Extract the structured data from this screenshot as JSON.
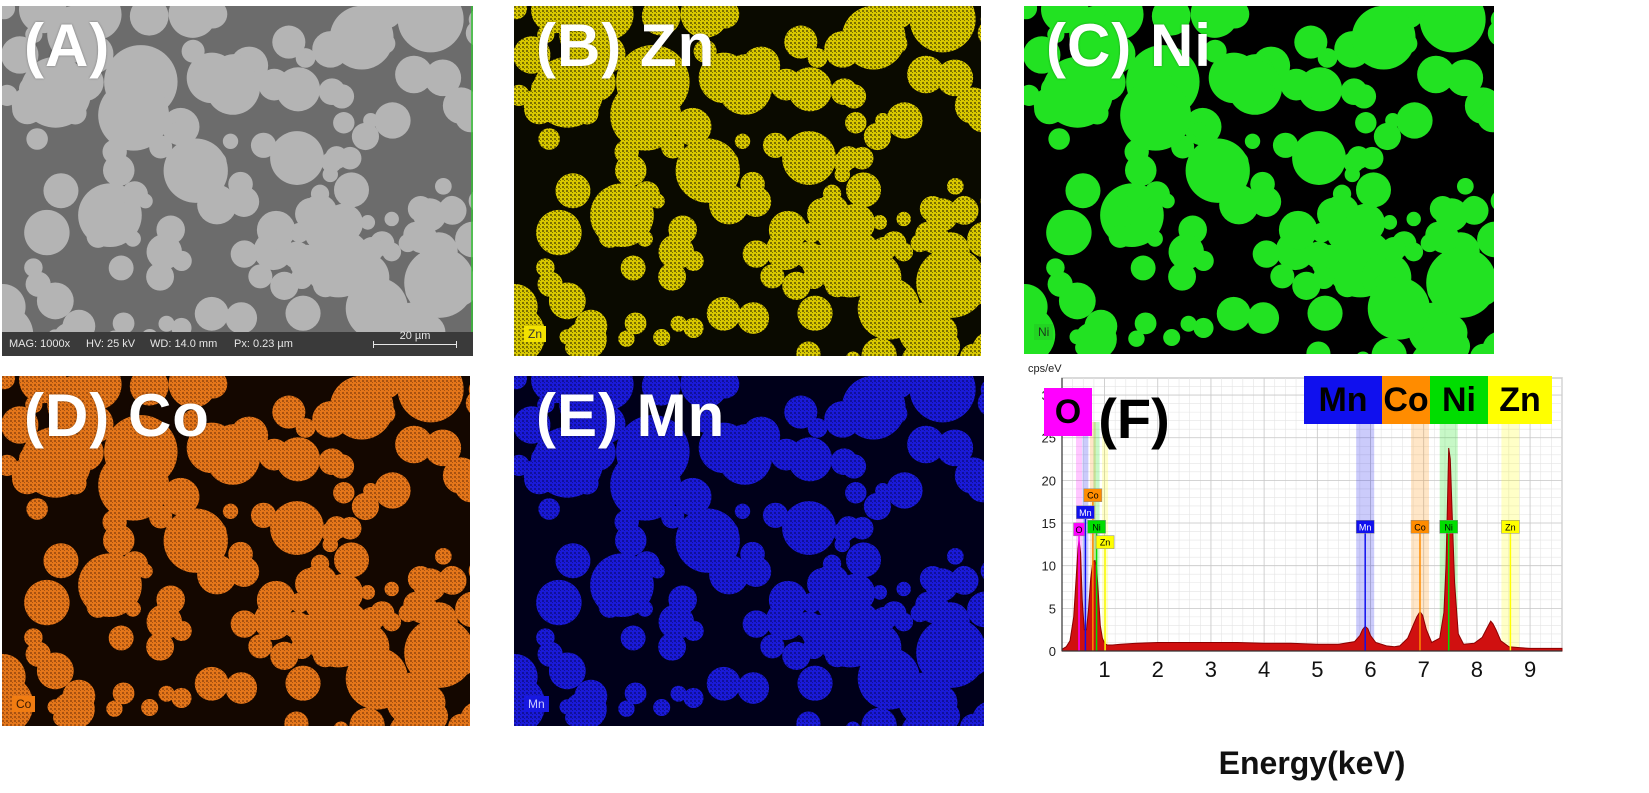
{
  "panels": {
    "A": {
      "label": "(A)",
      "sem": {
        "mag": "MAG: 1000x",
        "hv": "HV: 25 kV",
        "wd": "WD: 14.0 mm",
        "px": "Px: 0.23 µm",
        "scale": "20 µm"
      }
    },
    "B": {
      "label": "(B) Zn",
      "tag": "Zn",
      "color": "#f2e200"
    },
    "C": {
      "label": "(C) Ni",
      "tag": "Ni",
      "color": "#22e222"
    },
    "D": {
      "label": "(D) Co",
      "tag": "Co",
      "color": "#f07c12"
    },
    "E": {
      "label": "(E) Mn",
      "tag": "Mn",
      "color": "#1818e0"
    }
  },
  "chart_data": {
    "type": "line",
    "title": "(F)",
    "xlabel": "Energy(keV)",
    "ylabel": "cps/eV",
    "xlim": [
      0.2,
      9.6
    ],
    "ylim": [
      0,
      32
    ],
    "xticks": [
      1,
      2,
      3,
      4,
      5,
      6,
      7,
      8,
      9
    ],
    "yticks": [
      0,
      5,
      10,
      15,
      20,
      25,
      30
    ],
    "grid": true,
    "legend": [
      {
        "name": "O",
        "color": "#ff00ff"
      },
      {
        "name": "Mn",
        "color": "#1010ee"
      },
      {
        "name": "Co",
        "color": "#ff8c00"
      },
      {
        "name": "Ni",
        "color": "#00dd00"
      },
      {
        "name": "Zn",
        "color": "#ffff00"
      }
    ],
    "element_lines": [
      {
        "name": "O",
        "x": 0.52,
        "marker_y": 13.5,
        "color": "#ff00ff"
      },
      {
        "name": "Mn",
        "x": 0.64,
        "marker_y": 15.5,
        "color": "#1010ee"
      },
      {
        "name": "Co",
        "x": 0.78,
        "marker_y": 17.5,
        "color": "#ff8c00"
      },
      {
        "name": "Ni",
        "x": 0.85,
        "marker_y": 13.8,
        "color": "#00dd00"
      },
      {
        "name": "Zn",
        "x": 1.01,
        "marker_y": 12.0,
        "color": "#ffff00"
      },
      {
        "name": "Mn",
        "x": 5.9,
        "marker_y": 13.8,
        "color": "#1010ee"
      },
      {
        "name": "Co",
        "x": 6.93,
        "marker_y": 13.8,
        "color": "#ff8c00"
      },
      {
        "name": "Ni",
        "x": 7.47,
        "marker_y": 13.8,
        "color": "#00dd00"
      },
      {
        "name": "Zn",
        "x": 8.63,
        "marker_y": 13.8,
        "color": "#ffff00"
      }
    ],
    "spectrum": {
      "x": [
        0.2,
        0.28,
        0.35,
        0.42,
        0.47,
        0.5,
        0.52,
        0.55,
        0.58,
        0.62,
        0.66,
        0.7,
        0.74,
        0.78,
        0.82,
        0.85,
        0.88,
        0.92,
        0.96,
        1.0,
        1.05,
        1.15,
        1.3,
        1.6,
        2.0,
        2.5,
        3.0,
        3.5,
        4.0,
        4.5,
        5.0,
        5.4,
        5.7,
        5.8,
        5.85,
        5.9,
        5.95,
        6.0,
        6.1,
        6.3,
        6.45,
        6.55,
        6.7,
        6.8,
        6.87,
        6.93,
        6.98,
        7.05,
        7.15,
        7.3,
        7.38,
        7.42,
        7.45,
        7.47,
        7.5,
        7.53,
        7.58,
        7.65,
        7.75,
        7.95,
        8.1,
        8.2,
        8.26,
        8.3,
        8.36,
        8.45,
        8.6,
        8.8,
        9.0,
        9.3,
        9.6
      ],
      "y": [
        0.2,
        0.5,
        1.2,
        4.0,
        9.0,
        12.0,
        13.0,
        11.5,
        6.0,
        2.5,
        2.5,
        5.0,
        8.5,
        10.5,
        10.6,
        9.8,
        7.0,
        3.0,
        1.5,
        0.9,
        0.7,
        0.7,
        0.8,
        0.9,
        1.0,
        1.0,
        1.0,
        1.0,
        0.9,
        0.9,
        0.8,
        0.8,
        1.1,
        1.8,
        2.5,
        2.9,
        2.6,
        1.8,
        1.0,
        0.6,
        0.5,
        0.6,
        1.5,
        3.0,
        4.0,
        4.6,
        4.2,
        2.5,
        1.0,
        1.5,
        4.5,
        10.0,
        18.0,
        23.8,
        22.5,
        17.0,
        8.0,
        2.0,
        0.8,
        0.9,
        1.6,
        2.8,
        3.5,
        3.2,
        2.5,
        1.2,
        0.5,
        0.4,
        0.3,
        0.3,
        0.3
      ]
    }
  }
}
